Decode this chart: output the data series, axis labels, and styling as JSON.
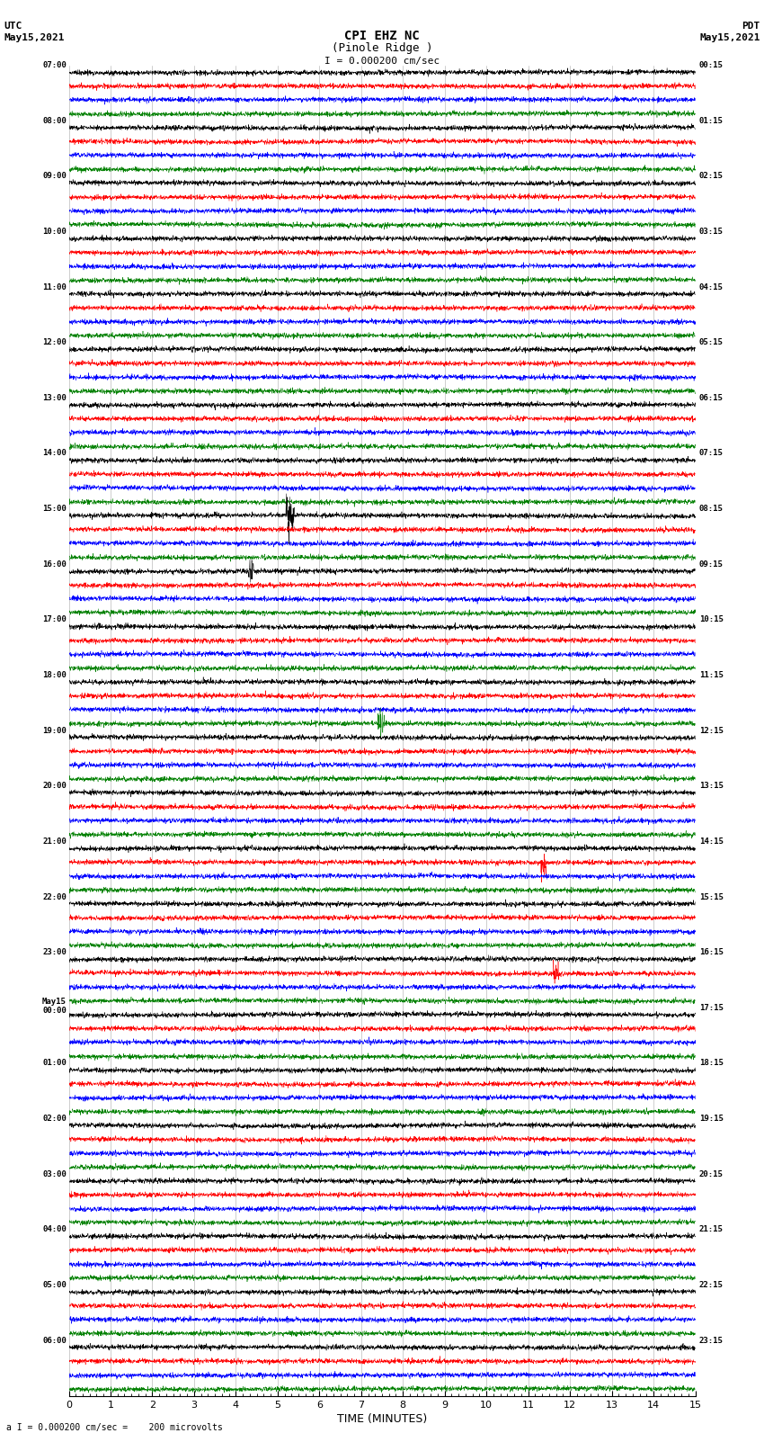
{
  "title_line1": "CPI EHZ NC",
  "title_line2": "(Pinole Ridge )",
  "scale_text": "I = 0.000200 cm/sec",
  "left_label_line1": "UTC",
  "left_label_line2": "May15,2021",
  "right_label_line1": "PDT",
  "right_label_line2": "May15,2021",
  "bottom_label": "a I = 0.000200 cm/sec =    200 microvolts",
  "xlabel": "TIME (MINUTES)",
  "xticks": [
    0,
    1,
    2,
    3,
    4,
    5,
    6,
    7,
    8,
    9,
    10,
    11,
    12,
    13,
    14,
    15
  ],
  "left_times": [
    "07:00",
    "08:00",
    "09:00",
    "10:00",
    "11:00",
    "12:00",
    "13:00",
    "14:00",
    "15:00",
    "16:00",
    "17:00",
    "18:00",
    "19:00",
    "20:00",
    "21:00",
    "22:00",
    "23:00",
    "May15\n00:00",
    "01:00",
    "02:00",
    "03:00",
    "04:00",
    "05:00",
    "06:00"
  ],
  "right_times": [
    "00:15",
    "01:15",
    "02:15",
    "03:15",
    "04:15",
    "05:15",
    "06:15",
    "07:15",
    "08:15",
    "09:15",
    "10:15",
    "11:15",
    "12:15",
    "13:15",
    "14:15",
    "15:15",
    "16:15",
    "17:15",
    "18:15",
    "19:15",
    "20:15",
    "21:15",
    "22:15",
    "23:15"
  ],
  "colors": [
    "black",
    "red",
    "blue",
    "green"
  ],
  "n_hour_blocks": 24,
  "traces_per_block": 4,
  "n_samples": 3000,
  "bg_color": "white",
  "amplitude_scale": 0.38,
  "noise_std": 0.22,
  "grid_color": "#aaaaaa",
  "grid_lw": 0.4
}
